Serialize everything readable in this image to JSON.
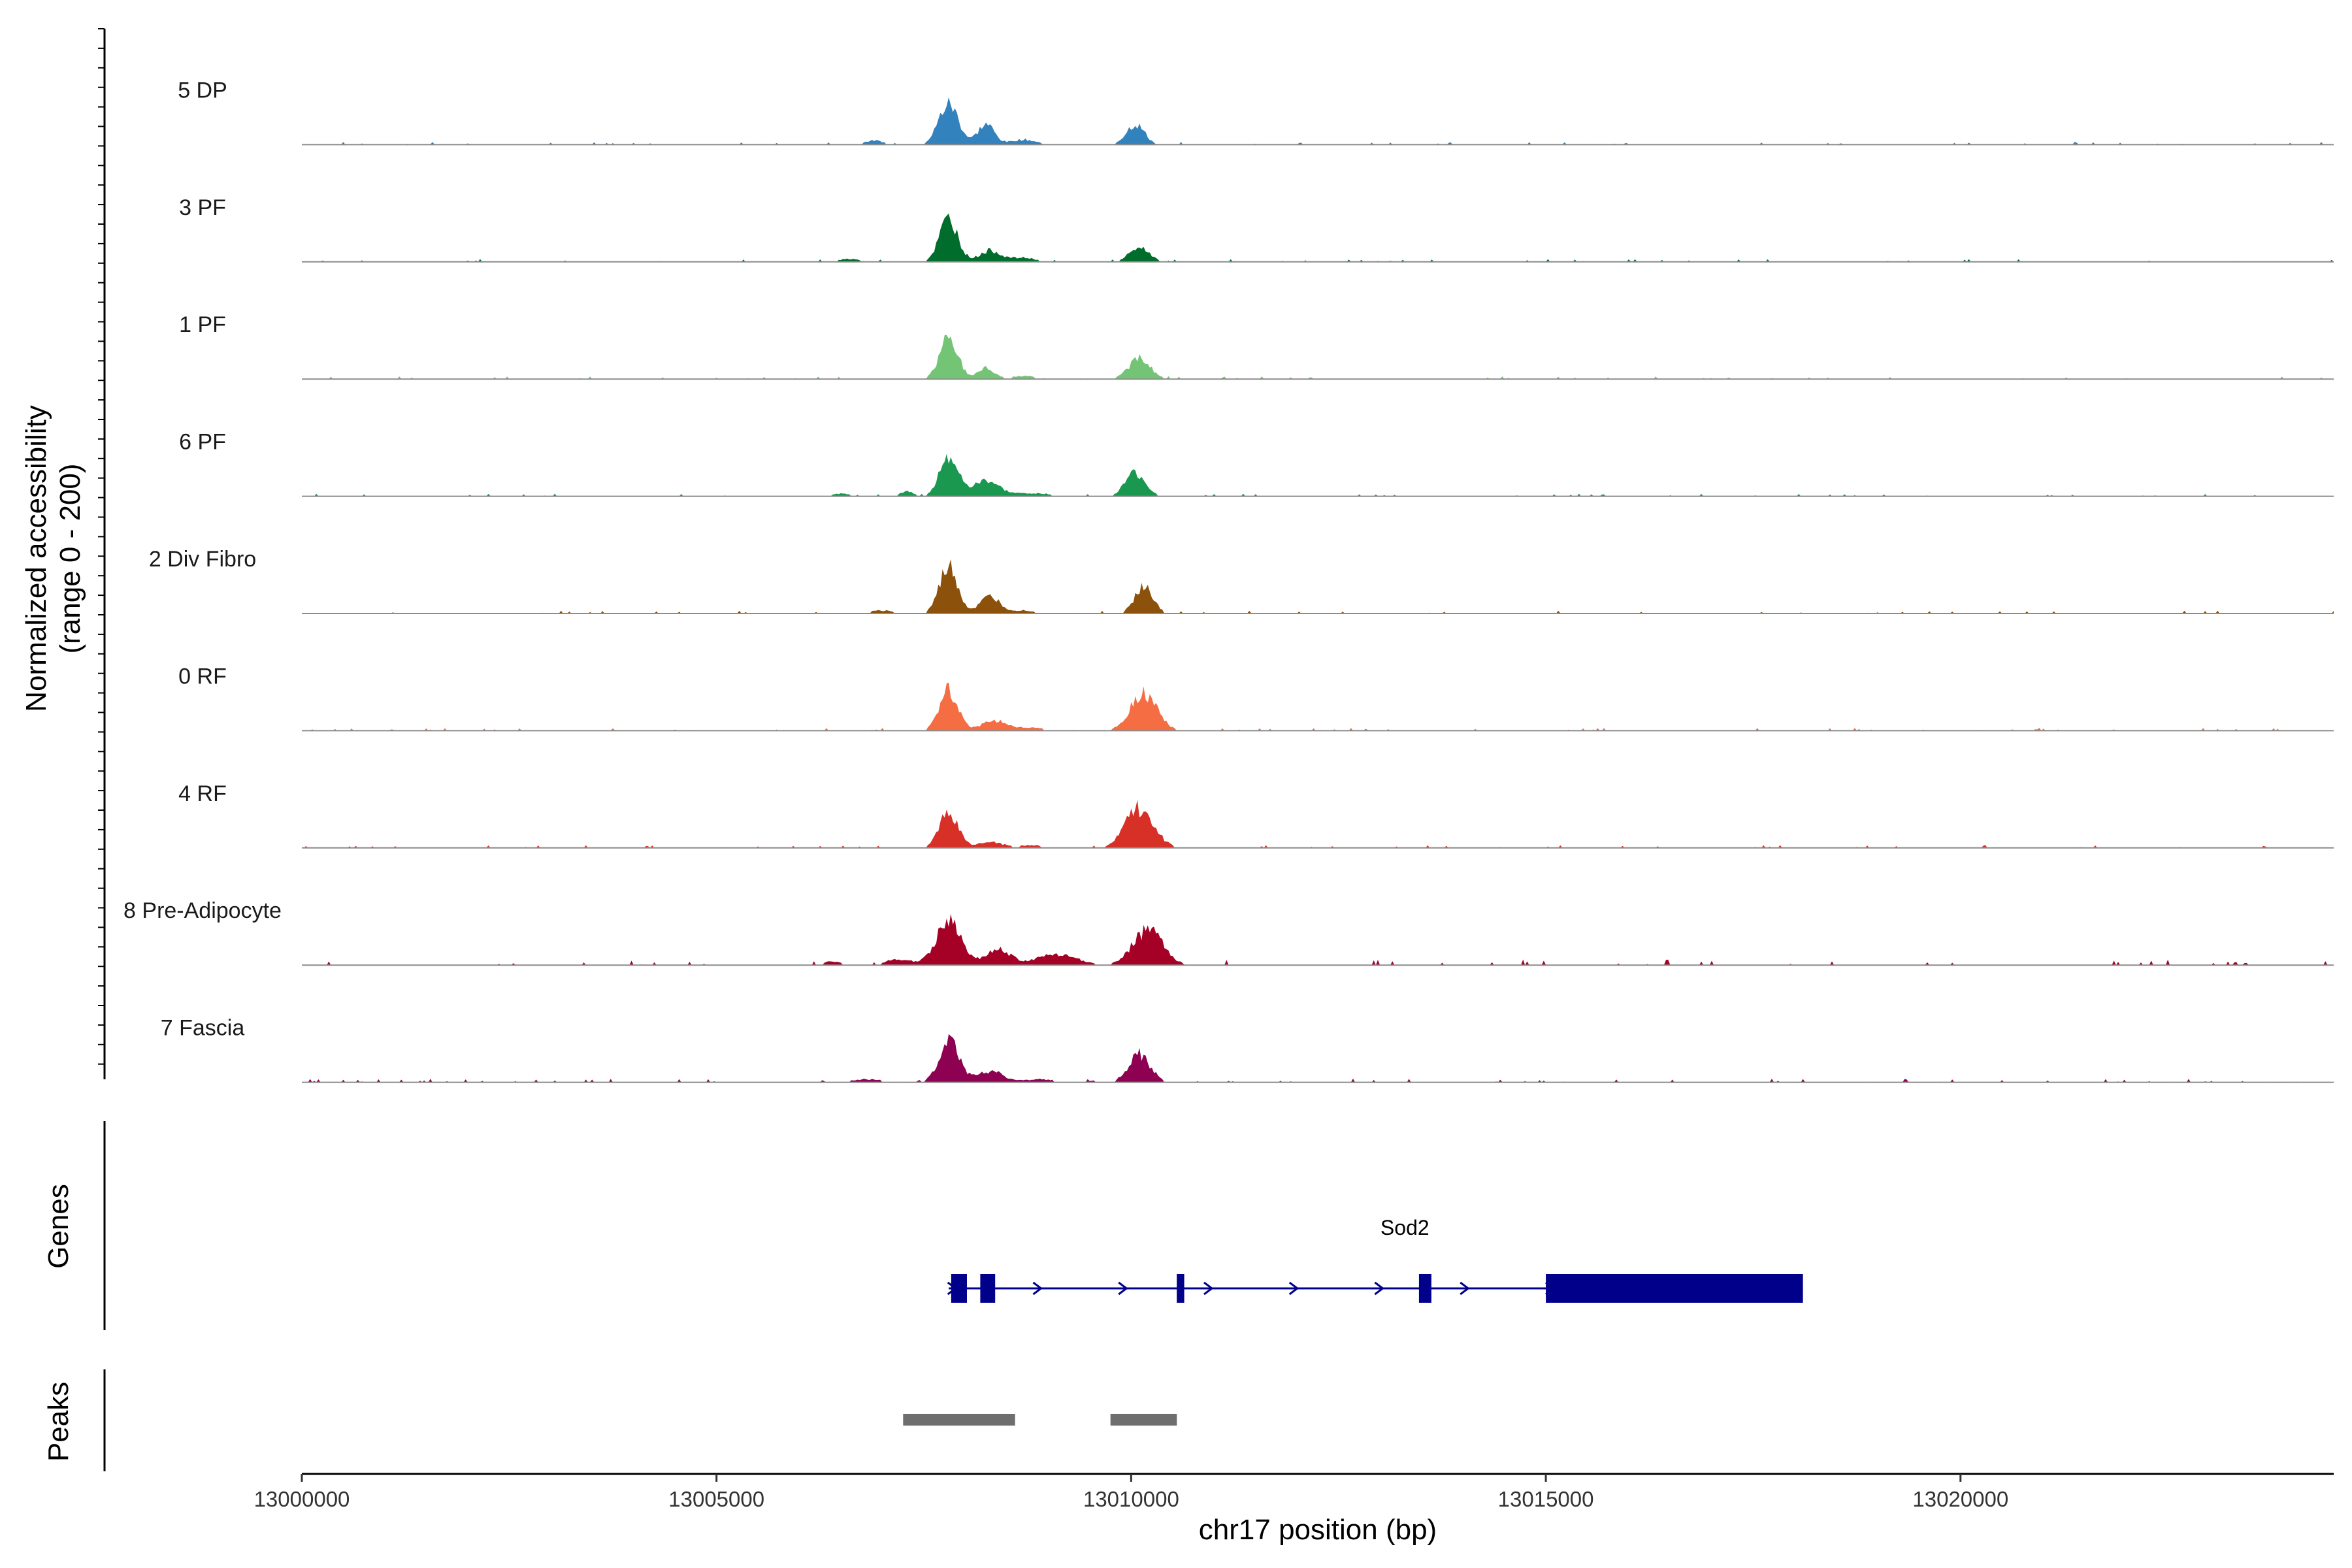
{
  "chart_data": {
    "type": "area",
    "title": "",
    "xlabel": "chr17 position (bp)",
    "ylabel": "Normalized accessibility",
    "ylabel_sub": "(range 0 - 200)",
    "xlim": [
      13000000,
      13024500
    ],
    "ylim": [
      0,
      200
    ],
    "x_ticks": [
      13000000,
      13005000,
      13010000,
      13015000,
      13020000
    ],
    "x_tick_labels": [
      "13000000",
      "13005000",
      "13010000",
      "13015000",
      "13020000"
    ],
    "tracks_title_genes": "Genes",
    "tracks_title_peaks": "Peaks",
    "series": [
      {
        "name": "5 DP",
        "color": "#3182bd",
        "peaks": [
          [
            13007800,
            80,
            120
          ],
          [
            13008250,
            40,
            100
          ],
          [
            13008700,
            10,
            150
          ],
          [
            13010050,
            40,
            110
          ],
          [
            13006900,
            8,
            120
          ]
        ],
        "background": 3
      },
      {
        "name": "3 PF",
        "color": "#006d2c",
        "peaks": [
          [
            13007800,
            85,
            110
          ],
          [
            13008300,
            22,
            130
          ],
          [
            13008700,
            8,
            150
          ],
          [
            13010100,
            28,
            120
          ],
          [
            13006600,
            6,
            140
          ]
        ],
        "background": 3
      },
      {
        "name": "1 PF",
        "color": "#74c476",
        "peaks": [
          [
            13007800,
            80,
            110
          ],
          [
            13008250,
            22,
            100
          ],
          [
            13008700,
            6,
            150
          ],
          [
            13010100,
            40,
            130
          ]
        ],
        "background": 3
      },
      {
        "name": "6 PF",
        "color": "#1a9850",
        "peaks": [
          [
            13007800,
            80,
            110
          ],
          [
            13008250,
            30,
            150
          ],
          [
            13008800,
            6,
            250
          ],
          [
            13010050,
            45,
            120
          ],
          [
            13007300,
            10,
            80
          ],
          [
            13006500,
            5,
            150
          ]
        ],
        "background": 3
      },
      {
        "name": "2 Div Fibro",
        "color": "#8c510a",
        "peaks": [
          [
            13007800,
            90,
            110
          ],
          [
            13008300,
            32,
            120
          ],
          [
            13008700,
            6,
            150
          ],
          [
            13010150,
            52,
            110
          ],
          [
            13007000,
            6,
            150
          ]
        ],
        "background": 3
      },
      {
        "name": "0 RF",
        "color": "#f46d43",
        "peaks": [
          [
            13007800,
            80,
            110
          ],
          [
            13008350,
            20,
            150
          ],
          [
            13010150,
            72,
            160
          ],
          [
            13008800,
            6,
            150
          ]
        ],
        "background": 3
      },
      {
        "name": "4 RF",
        "color": "#d73027",
        "peaks": [
          [
            13007800,
            72,
            110
          ],
          [
            13008300,
            12,
            150
          ],
          [
            13010100,
            78,
            170
          ],
          [
            13008800,
            5,
            150
          ]
        ],
        "background": 3
      },
      {
        "name": "8 Pre-Adipocyte",
        "color": "#a50026",
        "peaks": [
          [
            13007800,
            85,
            150
          ],
          [
            13008400,
            30,
            150
          ],
          [
            13010200,
            68,
            180
          ],
          [
            13009100,
            20,
            250
          ],
          [
            13007200,
            12,
            150
          ],
          [
            13006400,
            8,
            100
          ]
        ],
        "background": 6
      },
      {
        "name": "7 Fascia",
        "color": "#8e0152",
        "peaks": [
          [
            13007800,
            80,
            120
          ],
          [
            13008300,
            22,
            160
          ],
          [
            13010100,
            55,
            130
          ],
          [
            13008900,
            6,
            180
          ],
          [
            13006800,
            6,
            200
          ]
        ],
        "background": 4
      }
    ],
    "gene": {
      "name": "Sod2",
      "color": "#00008b",
      "start": 13007800,
      "end": 13018100,
      "strand": "+",
      "exons": [
        [
          13007830,
          13008020
        ],
        [
          13008180,
          13008360
        ],
        [
          13010550,
          13010640
        ],
        [
          13013470,
          13013620
        ],
        [
          13015000,
          13018100
        ]
      ]
    },
    "peaks": [
      [
        13007250,
        13008600
      ],
      [
        13009750,
        13010550
      ]
    ]
  }
}
